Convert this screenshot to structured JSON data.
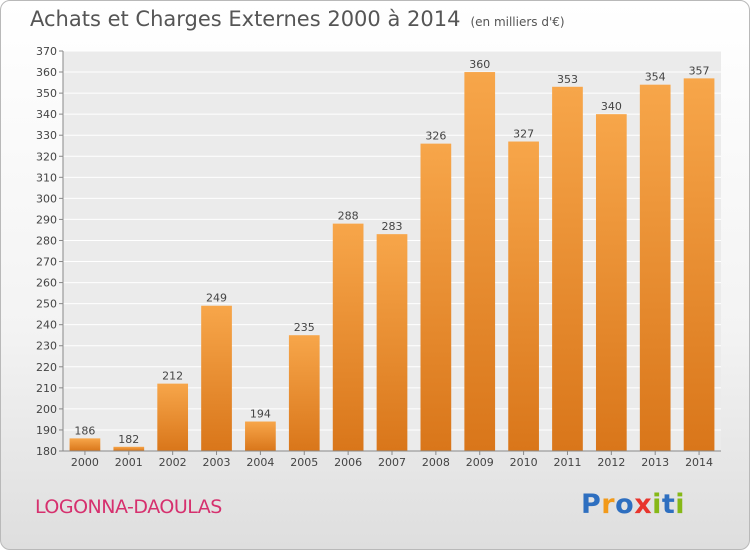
{
  "header": {
    "title": "Achats et Charges Externes 2000 à 2014",
    "unit": "(en milliers d'€)"
  },
  "commune": "LOGONNA-DAOULAS",
  "brand": {
    "letters": [
      "P",
      "r",
      "o",
      "x",
      "i",
      "t",
      "i"
    ],
    "colors": [
      "#2e6fc0",
      "#f29a1a",
      "#2e6fc0",
      "#e8352d",
      "#86b817",
      "#2e6fc0",
      "#86b817"
    ]
  },
  "chart_data": {
    "type": "bar",
    "title": "Achats et Charges Externes 2000 à 2014",
    "subtitle": "(en milliers d'€)",
    "categories": [
      "2000",
      "2001",
      "2002",
      "2003",
      "2004",
      "2005",
      "2006",
      "2007",
      "2008",
      "2009",
      "2010",
      "2011",
      "2012",
      "2013",
      "2014"
    ],
    "values": [
      186,
      182,
      212,
      249,
      194,
      235,
      288,
      283,
      326,
      360,
      327,
      353,
      340,
      354,
      357
    ],
    "ylim": [
      180,
      370
    ],
    "ytick_step": 10,
    "grid": true,
    "bar_color": "#f0922c"
  }
}
